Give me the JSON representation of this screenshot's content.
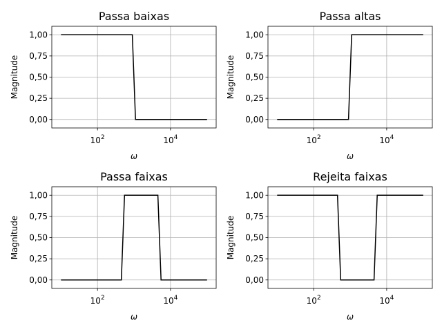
{
  "chart_data": [
    {
      "type": "line",
      "title": "Passa baixas",
      "xlabel": "ω",
      "ylabel": "Magnitude",
      "xscale": "log",
      "xlim": [
        5.6,
        178000
      ],
      "ylim": [
        -0.1,
        1.1
      ],
      "xticks": [
        {
          "value": 100,
          "label": "10",
          "exp": "2"
        },
        {
          "value": 10000,
          "label": "10",
          "exp": "4"
        }
      ],
      "yticks": [
        {
          "value": 0,
          "label": "0,00"
        },
        {
          "value": 0.25,
          "label": "0,25"
        },
        {
          "value": 0.5,
          "label": "0,50"
        },
        {
          "value": 0.75,
          "label": "0,75"
        },
        {
          "value": 1,
          "label": "1,00"
        }
      ],
      "grid": true,
      "series": [
        {
          "color": "#000000",
          "x": [
            10,
            900,
            1100,
            100000
          ],
          "y": [
            1,
            1,
            0,
            0
          ]
        }
      ]
    },
    {
      "type": "line",
      "title": "Passa altas",
      "xlabel": "ω",
      "ylabel": "Magnitude",
      "xscale": "log",
      "xlim": [
        5.6,
        178000
      ],
      "ylim": [
        -0.1,
        1.1
      ],
      "xticks": [
        {
          "value": 100,
          "label": "10",
          "exp": "2"
        },
        {
          "value": 10000,
          "label": "10",
          "exp": "4"
        }
      ],
      "yticks": [
        {
          "value": 0,
          "label": "0,00"
        },
        {
          "value": 0.25,
          "label": "0,25"
        },
        {
          "value": 0.5,
          "label": "0,50"
        },
        {
          "value": 0.75,
          "label": "0,75"
        },
        {
          "value": 1,
          "label": "1,00"
        }
      ],
      "grid": true,
      "series": [
        {
          "color": "#000000",
          "x": [
            10,
            900,
            1100,
            100000
          ],
          "y": [
            0,
            0,
            1,
            1
          ]
        }
      ]
    },
    {
      "type": "line",
      "title": "Passa faixas",
      "xlabel": "ω",
      "ylabel": "Magnitude",
      "xscale": "log",
      "xlim": [
        5.6,
        178000
      ],
      "ylim": [
        -0.1,
        1.1
      ],
      "xticks": [
        {
          "value": 100,
          "label": "10",
          "exp": "2"
        },
        {
          "value": 10000,
          "label": "10",
          "exp": "4"
        }
      ],
      "yticks": [
        {
          "value": 0,
          "label": "0,00"
        },
        {
          "value": 0.25,
          "label": "0,25"
        },
        {
          "value": 0.5,
          "label": "0,50"
        },
        {
          "value": 0.75,
          "label": "0,75"
        },
        {
          "value": 1,
          "label": "1,00"
        }
      ],
      "grid": true,
      "series": [
        {
          "color": "#000000",
          "x": [
            10,
            450,
            550,
            4500,
            5500,
            100000
          ],
          "y": [
            0,
            0,
            1,
            1,
            0,
            0
          ]
        }
      ]
    },
    {
      "type": "line",
      "title": "Rejeita faixas",
      "xlabel": "ω",
      "ylabel": "Magnitude",
      "xscale": "log",
      "xlim": [
        5.6,
        178000
      ],
      "ylim": [
        -0.1,
        1.1
      ],
      "xticks": [
        {
          "value": 100,
          "label": "10",
          "exp": "2"
        },
        {
          "value": 10000,
          "label": "10",
          "exp": "4"
        }
      ],
      "yticks": [
        {
          "value": 0,
          "label": "0,00"
        },
        {
          "value": 0.25,
          "label": "0,25"
        },
        {
          "value": 0.5,
          "label": "0,50"
        },
        {
          "value": 0.75,
          "label": "0,75"
        },
        {
          "value": 1,
          "label": "1,00"
        }
      ],
      "grid": true,
      "series": [
        {
          "color": "#000000",
          "x": [
            10,
            450,
            550,
            4500,
            5500,
            100000
          ],
          "y": [
            1,
            1,
            0,
            0,
            1,
            1
          ]
        }
      ]
    }
  ]
}
